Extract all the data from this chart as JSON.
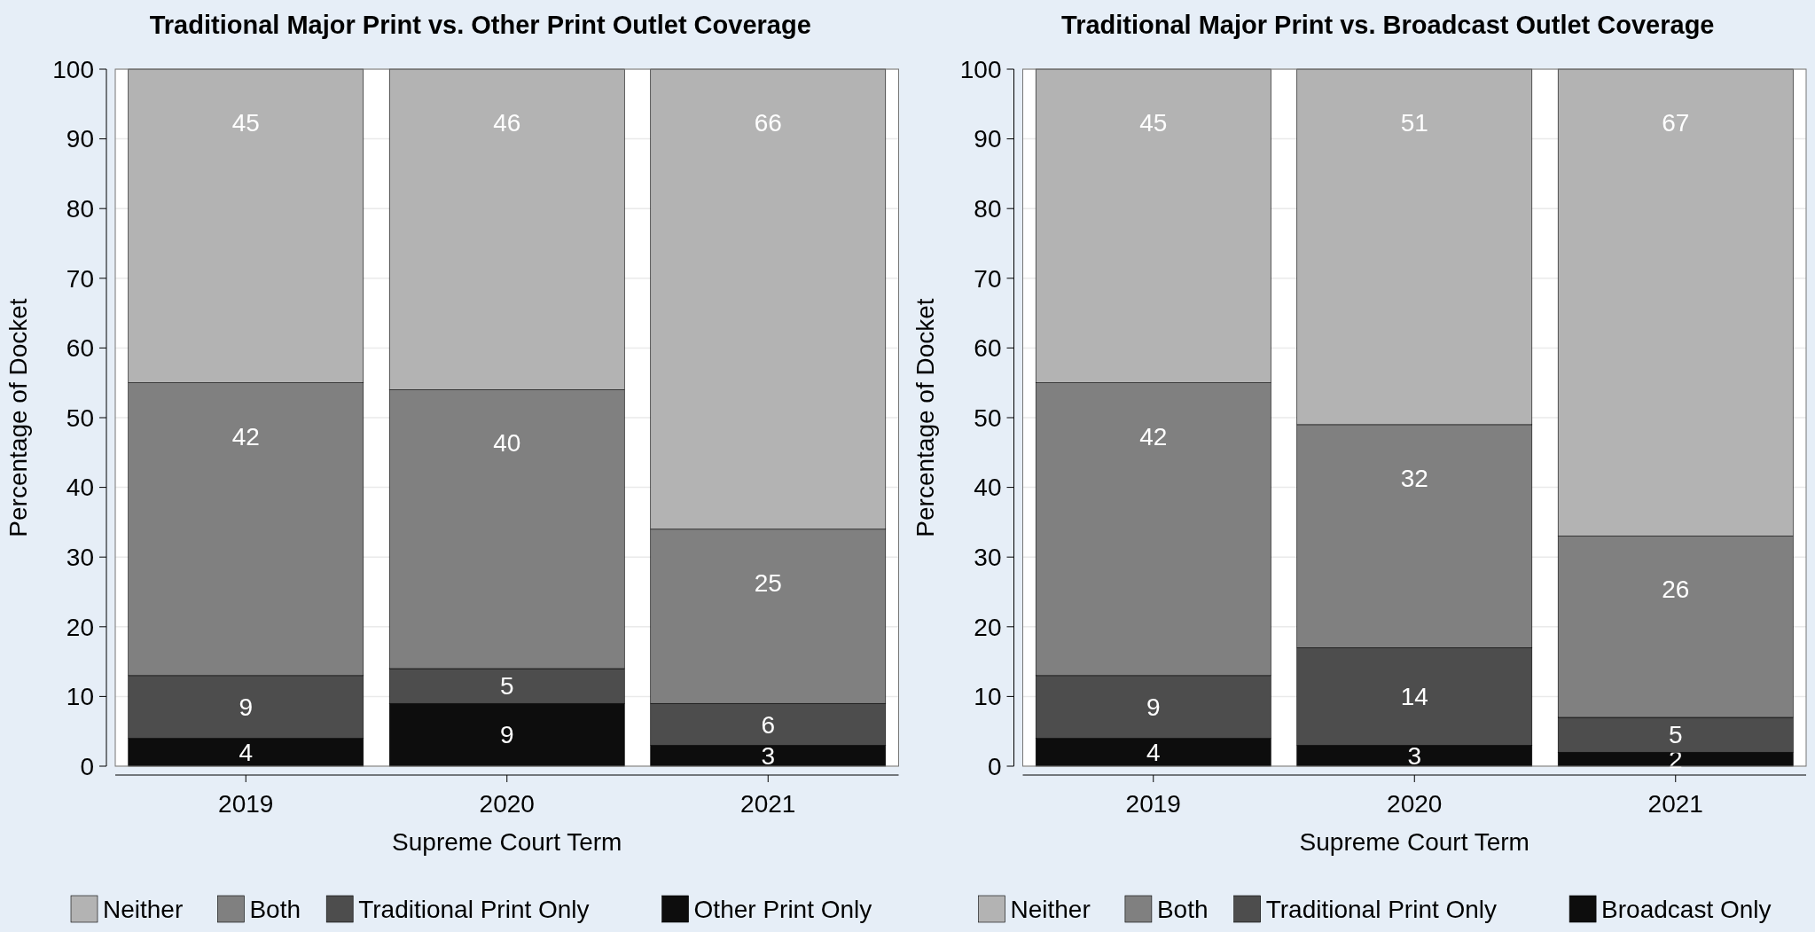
{
  "chart_data": [
    {
      "type": "bar",
      "title": "Traditional Major Print vs. Other Print Outlet Coverage",
      "xlabel": "Supreme Court Term",
      "ylabel": "Percentage of Docket",
      "categories": [
        "2019",
        "2020",
        "2021"
      ],
      "stacked": true,
      "data_labels": true,
      "grid": "y",
      "legend": "bottom",
      "ylim": [
        0,
        100
      ],
      "yticks": [
        0,
        10,
        20,
        30,
        40,
        50,
        60,
        70,
        80,
        90,
        100
      ],
      "series": [
        {
          "name": "Other Print Only",
          "color": "#0d0d0d",
          "values": [
            4,
            9,
            3
          ]
        },
        {
          "name": "Traditional Print Only",
          "color": "#4d4d4d",
          "values": [
            9,
            5,
            6
          ]
        },
        {
          "name": "Both",
          "color": "#808080",
          "values": [
            42,
            40,
            25
          ]
        },
        {
          "name": "Neither",
          "color": "#b3b3b3",
          "values": [
            45,
            46,
            66
          ]
        }
      ]
    },
    {
      "type": "bar",
      "title": "Traditional Major Print vs. Broadcast Outlet Coverage",
      "xlabel": "Supreme Court Term",
      "ylabel": "Percentage of Docket",
      "categories": [
        "2019",
        "2020",
        "2021"
      ],
      "stacked": true,
      "data_labels": true,
      "grid": "y",
      "legend": "bottom",
      "ylim": [
        0,
        100
      ],
      "yticks": [
        0,
        10,
        20,
        30,
        40,
        50,
        60,
        70,
        80,
        90,
        100
      ],
      "series": [
        {
          "name": "Broadcast Only",
          "color": "#0d0d0d",
          "values": [
            4,
            3,
            2
          ]
        },
        {
          "name": "Traditional Print Only",
          "color": "#4d4d4d",
          "values": [
            9,
            14,
            5
          ]
        },
        {
          "name": "Both",
          "color": "#808080",
          "values": [
            42,
            32,
            26
          ]
        },
        {
          "name": "Neither",
          "color": "#b3b3b3",
          "values": [
            45,
            51,
            67
          ]
        }
      ]
    }
  ]
}
